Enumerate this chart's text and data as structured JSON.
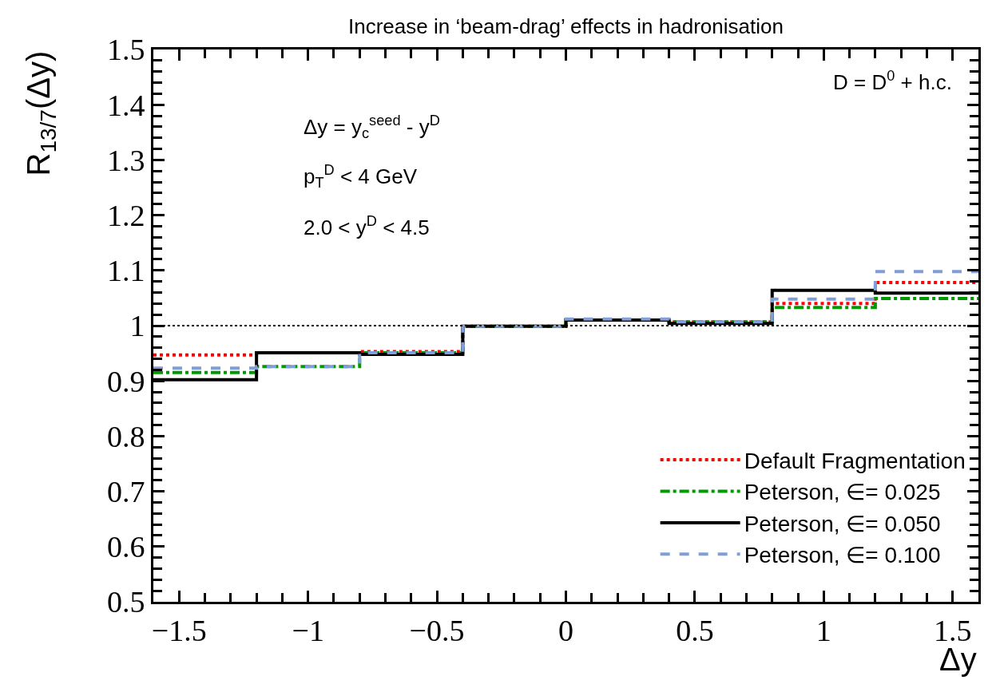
{
  "chart_data": {
    "type": "histogram",
    "title": "Increase in ‘beam-drag’ effects in hadronisation",
    "xlabel": "Δy",
    "ylabel": "R$_{13/7}$(Δy)",
    "bins": [
      -1.6,
      -1.2,
      -0.8,
      -0.4,
      0,
      0.4,
      0.8,
      1.2,
      1.6
    ],
    "series": [
      {
        "name": "Default Fragmentation",
        "color": "#ff0000",
        "line_style": "dotted",
        "values": [
          0.947,
          0.951,
          0.953,
          0.999,
          1.01,
          1.007,
          1.04,
          1.078
        ]
      },
      {
        "name": "Peterson, ∈= 0.025",
        "color": "#009900",
        "line_style": "dashdot",
        "values": [
          0.915,
          0.926,
          0.951,
          0.999,
          1.01,
          1.007,
          1.033,
          1.049
        ]
      },
      {
        "name": "Peterson, ∈= 0.050",
        "color": "#000000",
        "line_style": "solid",
        "values": [
          0.902,
          0.951,
          0.948,
          0.999,
          1.01,
          1.004,
          1.064,
          1.059
        ]
      },
      {
        "name": "Peterson, ∈= 0.100",
        "color": "#7f9fd6",
        "line_style": "dashed",
        "values": [
          0.923,
          0.926,
          0.951,
          0.999,
          1.012,
          1.007,
          1.048,
          1.098
        ]
      }
    ],
    "xlim": [
      -1.6,
      1.6
    ],
    "ylim": [
      0.5,
      1.5
    ],
    "xticks": [
      {
        "value": -1.5,
        "label": "−1.5"
      },
      {
        "value": -1,
        "label": "−1"
      },
      {
        "value": -0.5,
        "label": "−0.5"
      },
      0,
      0.5,
      1,
      1.5
    ],
    "yticks": [
      0.5,
      0.6,
      0.7,
      0.8,
      0.9,
      1,
      1.1,
      1.2,
      1.3,
      1.4,
      1.5
    ],
    "ref_lines": [
      {
        "axis": "y",
        "value": 1,
        "color": "#000000",
        "line_style": "dotted"
      }
    ],
    "annotations": [
      "D = D$^{0}$ + h.c.",
      "Δy = y$_{c}$$^{seed}$ - y$^{D}$",
      "p$_{T}$$^{D}$ < 4 GeV",
      "2.0 < y$^{D}$ < 4.5"
    ],
    "legend": "bottom right",
    "grid": false
  }
}
